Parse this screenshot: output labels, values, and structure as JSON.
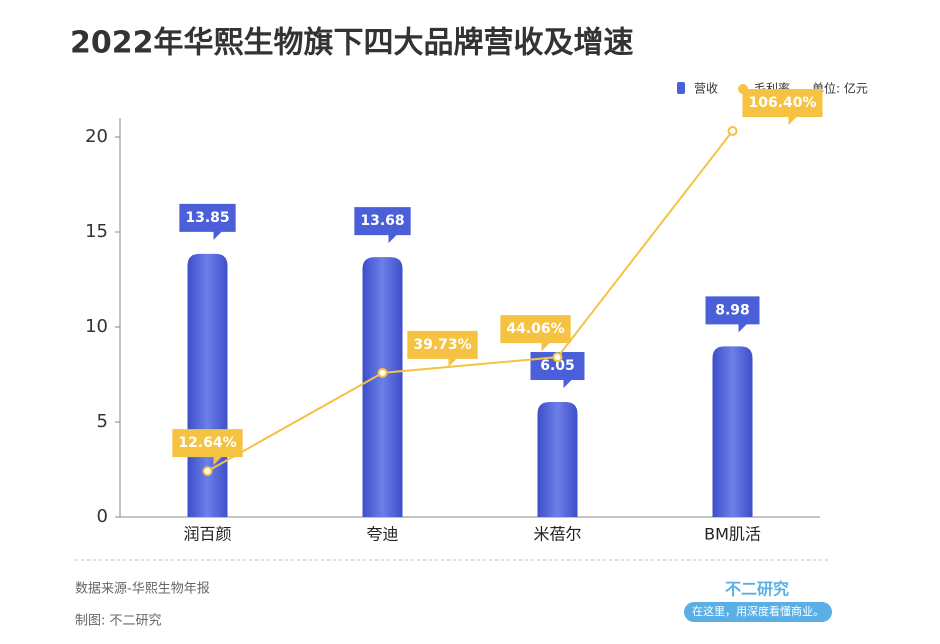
{
  "chart_data": {
    "type": "bar_line",
    "title": "2022年华熙生物旗下四大品牌营收及增速",
    "unit": "单位: 亿元",
    "categories": [
      "润百颜",
      "夸迪",
      "米蓓尔",
      "BM肌活"
    ],
    "series": [
      {
        "name": "营收",
        "color": "#4a5fd8",
        "values": [
          13.85,
          13.68,
          6.05,
          8.98
        ]
      },
      {
        "name": "毛利率",
        "color": "#f5c242",
        "axis": "y2",
        "values": [
          12.64,
          39.73,
          44.06,
          106.4
        ],
        "value_labels": [
          "12.64%",
          "39.73%",
          "44.06%",
          "106.40%"
        ]
      }
    ],
    "ylim": [
      0,
      21
    ],
    "yticks": [
      0,
      5,
      10,
      15,
      20
    ],
    "y2lim": [
      0,
      110
    ],
    "source": "数据来源-华熙生物年报",
    "credit": "制图: 不二研究",
    "brand": "不二研究",
    "slogan": "在这里，用深度看懂商业。"
  }
}
